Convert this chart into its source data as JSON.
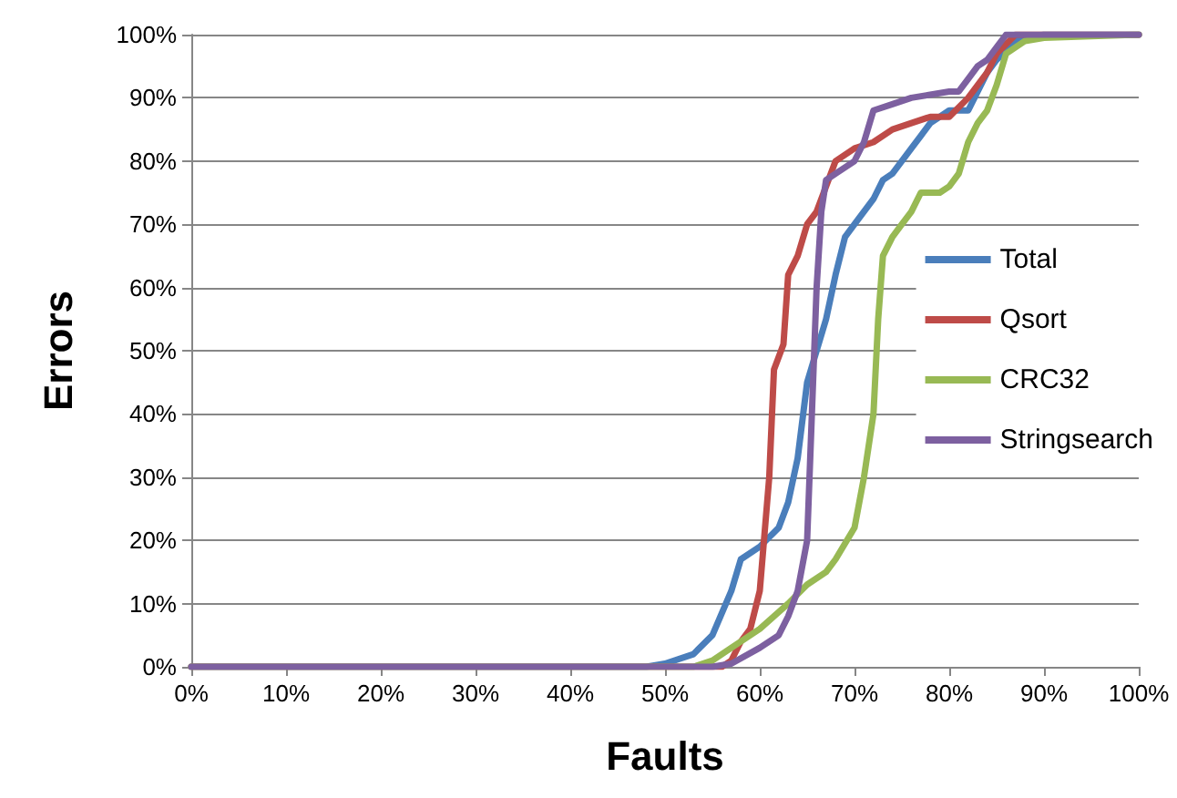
{
  "chart_data": {
    "type": "line",
    "xlabel": "Faults",
    "ylabel": "Errors",
    "xlim": [
      0,
      100
    ],
    "ylim": [
      0,
      100
    ],
    "xticks": [
      {
        "value": 0,
        "label": "0%"
      },
      {
        "value": 10,
        "label": "10%"
      },
      {
        "value": 20,
        "label": "20%"
      },
      {
        "value": 30,
        "label": "30%"
      },
      {
        "value": 40,
        "label": "40%"
      },
      {
        "value": 50,
        "label": "50%"
      },
      {
        "value": 60,
        "label": "60%"
      },
      {
        "value": 70,
        "label": "70%"
      },
      {
        "value": 80,
        "label": "80%"
      },
      {
        "value": 90,
        "label": "90%"
      },
      {
        "value": 100,
        "label": "100%"
      }
    ],
    "yticks": [
      {
        "value": 0,
        "label": "0%"
      },
      {
        "value": 10,
        "label": "10%"
      },
      {
        "value": 20,
        "label": "20%"
      },
      {
        "value": 30,
        "label": "30%"
      },
      {
        "value": 40,
        "label": "40%"
      },
      {
        "value": 50,
        "label": "50%"
      },
      {
        "value": 60,
        "label": "60%"
      },
      {
        "value": 70,
        "label": "70%"
      },
      {
        "value": 80,
        "label": "80%"
      },
      {
        "value": 90,
        "label": "90%"
      },
      {
        "value": 100,
        "label": "100%"
      }
    ],
    "grid": "y",
    "legend": "right",
    "marker": "none",
    "line_style": "solid",
    "series": [
      {
        "name": "Total",
        "color": "#4a7ebb",
        "x": [
          0,
          48,
          50,
          53,
          55,
          57,
          58,
          60,
          62,
          63,
          64,
          65,
          66,
          67,
          68,
          69,
          70,
          72,
          73,
          74,
          76,
          77,
          78,
          80,
          82,
          83,
          84,
          85,
          87,
          90,
          100
        ],
        "values": [
          0,
          0,
          0.5,
          2,
          5,
          12,
          17,
          19,
          22,
          26,
          33,
          45,
          50,
          55,
          62,
          68,
          70,
          74,
          77,
          78,
          82,
          84,
          86,
          88,
          88,
          91,
          94,
          96,
          99,
          100,
          100
        ]
      },
      {
        "name": "Qsort",
        "color": "#be4b48",
        "x": [
          0,
          56,
          57,
          58,
          59,
          60,
          61,
          61.5,
          62.5,
          63,
          64,
          65,
          66,
          67,
          68,
          70,
          72,
          74,
          76,
          78,
          80,
          82,
          84,
          85,
          87,
          100
        ],
        "values": [
          0,
          0,
          1,
          4,
          6,
          12,
          30,
          47,
          51,
          62,
          65,
          70,
          72,
          76,
          80,
          82,
          83,
          85,
          86,
          87,
          87,
          90,
          94,
          97,
          100,
          100
        ]
      },
      {
        "name": "CRC32",
        "color": "#98b954",
        "x": [
          0,
          53,
          55,
          57,
          60,
          63,
          65,
          67,
          68,
          70,
          71,
          72,
          72.5,
          73,
          74,
          75,
          76,
          77,
          79,
          80,
          81,
          82,
          83,
          84,
          85,
          86,
          88,
          90,
          100
        ],
        "values": [
          0,
          0,
          1,
          3,
          6,
          10,
          13,
          15,
          17,
          22,
          30,
          40,
          55,
          65,
          68,
          70,
          72,
          75,
          75,
          76,
          78,
          83,
          86,
          88,
          92,
          97,
          99,
          99.5,
          100
        ]
      },
      {
        "name": "Stringsearch",
        "color": "#7d60a0",
        "x": [
          0,
          55,
          57,
          60,
          62,
          63,
          64,
          65,
          65.5,
          66,
          66.5,
          67,
          68,
          70,
          71,
          72,
          74,
          76,
          80,
          81,
          82,
          83,
          84,
          85,
          86,
          100
        ],
        "values": [
          0,
          0,
          0.5,
          3,
          5,
          8,
          12,
          20,
          40,
          60,
          72,
          77,
          78,
          80,
          83,
          88,
          89,
          90,
          91,
          91,
          93,
          95,
          96,
          98,
          100,
          100
        ]
      }
    ]
  }
}
